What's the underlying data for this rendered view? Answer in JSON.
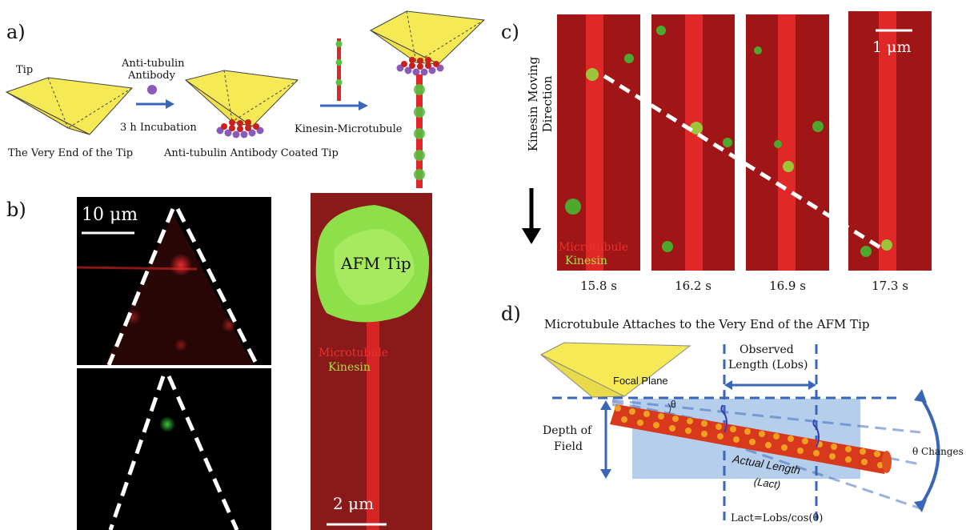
{
  "panel_a": {
    "label": "a)",
    "tip_label": "Tip",
    "antibody_label_line1": "Anti-tubulin",
    "antibody_label_line2": "Antibody",
    "incubation_label": "3 h Incubation",
    "very_end_label": "The Very End of the Tip",
    "coated_tip_label": "Anti-tubulin Antibody Coated Tip",
    "kinesin_mt_label": "Kinesin-Microtubule"
  },
  "panel_b": {
    "label": "b)",
    "scale_top": "10 μm",
    "afm_tip": "AFM Tip",
    "microtubule": "Microtubule",
    "kinesin": "Kinesin",
    "scale_right": "2 μm"
  },
  "panel_c": {
    "label": "c)",
    "direction": "Kinesin Moving Direction",
    "scale": "1 μm",
    "microtubule": "Microtubule",
    "kinesin": "Kinesin",
    "times": [
      "15.8 s",
      "16.2 s",
      "16.9 s",
      "17.3 s"
    ]
  },
  "panel_d": {
    "label": "d)",
    "title": "Microtubule Attaches to the Very End of the AFM Tip",
    "observed_line1": "Observed",
    "observed_line2": "Length (Lobs)",
    "focal_plane": "Focal Plane",
    "theta": "θ",
    "depth_line1": "Depth of",
    "depth_line2": "Field",
    "actual_line1": "Actual Length",
    "actual_line2": "(Lact)",
    "theta_changes": "θ Changes",
    "formula": "Lact=Lobs/cos(θ)"
  },
  "colors": {
    "tip_yellow": "#f5ea55",
    "arrow_blue": "#3a66b8",
    "microtubule_red": "#e0262a",
    "kinesin_green": "#59c043",
    "antibody_purple": "#8a5ab8",
    "field_blue": "#9bbde6"
  }
}
